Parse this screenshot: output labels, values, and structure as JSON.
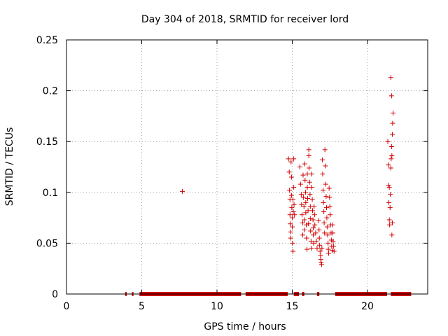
{
  "chart_data": {
    "type": "scatter",
    "title": "Day 304 of 2018, SRMTID for receiver lord",
    "xlabel": "GPS time / hours",
    "ylabel": "SRMTID / TECUs",
    "xlim": [
      0,
      24
    ],
    "ylim": [
      0,
      0.25
    ],
    "xticks": [
      0,
      5,
      10,
      15,
      20
    ],
    "xtick_labels": [
      "0",
      "5",
      "10",
      "15",
      "20"
    ],
    "yticks": [
      0,
      0.05,
      0.1,
      0.15,
      0.2,
      0.25
    ],
    "ytick_labels": [
      "0",
      "0.05",
      "0.1",
      "0.15",
      "0.2",
      "0.25"
    ],
    "grid": true,
    "marker": "+",
    "color": "#d00000",
    "zero_segments": [
      [
        3.9,
        4.0
      ],
      [
        4.35,
        4.45
      ],
      [
        4.85,
        11.6
      ],
      [
        11.9,
        14.7
      ],
      [
        15.1,
        15.45
      ],
      [
        15.65,
        15.8
      ],
      [
        16.65,
        16.8
      ],
      [
        17.85,
        21.3
      ],
      [
        21.55,
        22.9
      ]
    ],
    "series": [
      {
        "name": "SRMTID",
        "x": [
          7.7,
          14.75,
          14.8,
          14.82,
          14.85,
          14.85,
          14.87,
          14.9,
          14.9,
          14.92,
          14.95,
          14.95,
          14.97,
          15.0,
          15.0,
          15.02,
          15.05,
          15.05,
          15.07,
          15.1,
          15.1,
          15.12,
          15.15,
          15.5,
          15.55,
          15.6,
          15.62,
          15.65,
          15.7,
          15.7,
          15.72,
          15.75,
          15.78,
          15.8,
          15.8,
          15.83,
          15.85,
          15.88,
          15.9,
          15.9,
          15.93,
          15.95,
          15.98,
          16.0,
          16.0,
          16.02,
          16.05,
          16.08,
          16.1,
          16.1,
          16.12,
          16.15,
          16.18,
          16.2,
          16.2,
          16.22,
          16.25,
          16.28,
          16.3,
          16.3,
          16.33,
          16.35,
          16.38,
          16.4,
          16.4,
          16.42,
          16.45,
          16.48,
          16.5,
          16.55,
          16.6,
          16.65,
          16.75,
          16.78,
          16.8,
          16.82,
          16.85,
          16.88,
          16.9,
          16.92,
          16.95,
          16.97,
          17.0,
          17.02,
          17.05,
          17.07,
          17.1,
          17.12,
          17.15,
          17.17,
          17.2,
          17.22,
          17.25,
          17.28,
          17.3,
          17.32,
          17.35,
          17.38,
          17.4,
          17.42,
          17.45,
          17.48,
          17.5,
          17.52,
          17.55,
          17.58,
          17.6,
          17.62,
          17.65,
          17.68,
          17.7,
          17.72,
          17.75,
          17.78,
          21.35,
          21.38,
          21.4,
          21.42,
          21.45,
          21.47,
          21.5,
          21.52,
          21.55,
          21.57,
          21.6,
          21.62,
          21.65,
          21.67,
          21.7,
          21.45,
          21.55,
          21.6,
          21.62,
          21.65
        ],
        "y": [
          0.101,
          0.133,
          0.12,
          0.102,
          0.093,
          0.078,
          0.069,
          0.061,
          0.055,
          0.13,
          0.115,
          0.097,
          0.085,
          0.075,
          0.066,
          0.05,
          0.042,
          0.093,
          0.081,
          0.133,
          0.105,
          0.088,
          0.078,
          0.125,
          0.108,
          0.098,
          0.088,
          0.078,
          0.07,
          0.058,
          0.117,
          0.095,
          0.086,
          0.073,
          0.063,
          0.128,
          0.112,
          0.1,
          0.09,
          0.08,
          0.068,
          0.055,
          0.044,
          0.118,
          0.105,
          0.094,
          0.082,
          0.069,
          0.136,
          0.142,
          0.124,
          0.11,
          0.098,
          0.086,
          0.074,
          0.062,
          0.052,
          0.045,
          0.118,
          0.105,
          0.093,
          0.082,
          0.073,
          0.065,
          0.058,
          0.05,
          0.086,
          0.078,
          0.068,
          0.06,
          0.052,
          0.045,
          0.072,
          0.063,
          0.055,
          0.048,
          0.042,
          0.038,
          0.034,
          0.031,
          0.029,
          0.045,
          0.132,
          0.118,
          0.102,
          0.09,
          0.081,
          0.07,
          0.06,
          0.142,
          0.126,
          0.108,
          0.096,
          0.085,
          0.075,
          0.066,
          0.058,
          0.05,
          0.044,
          0.04,
          0.104,
          0.095,
          0.086,
          0.078,
          0.068,
          0.06,
          0.053,
          0.047,
          0.043,
          0.068,
          0.06,
          0.052,
          0.047,
          0.042,
          0.15,
          0.127,
          0.107,
          0.09,
          0.073,
          0.068,
          0.085,
          0.098,
          0.124,
          0.133,
          0.145,
          0.136,
          0.157,
          0.168,
          0.178,
          0.105,
          0.213,
          0.195,
          0.058,
          0.07
        ]
      }
    ]
  }
}
